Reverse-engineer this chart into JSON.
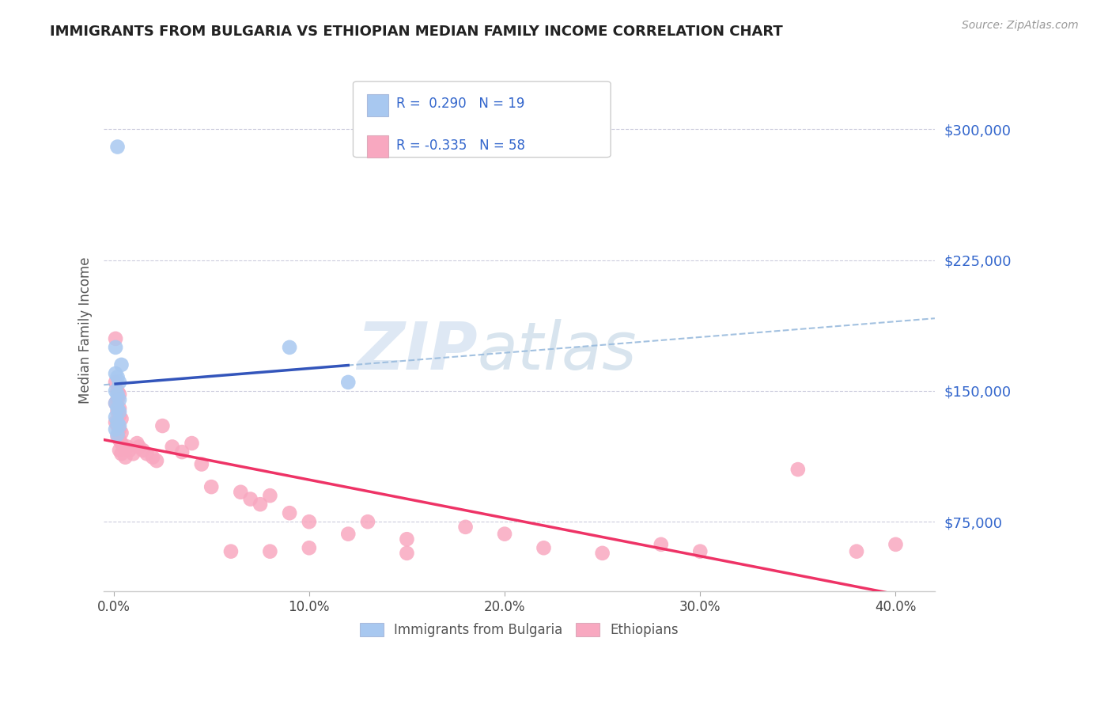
{
  "title": "IMMIGRANTS FROM BULGARIA VS ETHIOPIAN MEDIAN FAMILY INCOME CORRELATION CHART",
  "source_text": "Source: ZipAtlas.com",
  "ylabel": "Median Family Income",
  "xlabel_ticks": [
    "0.0%",
    "10.0%",
    "20.0%",
    "30.0%",
    "40.0%"
  ],
  "xlabel_tick_vals": [
    0.0,
    0.1,
    0.2,
    0.3,
    0.4
  ],
  "ytick_labels": [
    "$75,000",
    "$150,000",
    "$225,000",
    "$300,000"
  ],
  "ytick_vals": [
    75000,
    150000,
    225000,
    300000
  ],
  "ylim": [
    35000,
    335000
  ],
  "xlim": [
    -0.005,
    0.42
  ],
  "bg_color": "#ffffff",
  "grid_color": "#ccccdd",
  "bulgaria_color": "#a8c8f0",
  "ethiopia_color": "#f8a8c0",
  "bulgaria_line_color": "#3355bb",
  "ethiopia_line_color": "#ee3366",
  "bulgaria_dashed_color": "#99bbdd",
  "legend_text_color": "#3366cc",
  "axis_text_color": "#3366cc",
  "bottom_legend_text_color": "#555555",
  "bulgaria_points": [
    [
      0.002,
      290000
    ],
    [
      0.001,
      175000
    ],
    [
      0.004,
      165000
    ],
    [
      0.001,
      160000
    ],
    [
      0.002,
      158000
    ],
    [
      0.003,
      155000
    ],
    [
      0.001,
      150000
    ],
    [
      0.002,
      148000
    ],
    [
      0.003,
      145000
    ],
    [
      0.001,
      143000
    ],
    [
      0.002,
      140000
    ],
    [
      0.003,
      138000
    ],
    [
      0.001,
      135000
    ],
    [
      0.002,
      132000
    ],
    [
      0.003,
      130000
    ],
    [
      0.001,
      128000
    ],
    [
      0.002,
      125000
    ],
    [
      0.09,
      175000
    ],
    [
      0.12,
      155000
    ]
  ],
  "ethiopia_points": [
    [
      0.001,
      180000
    ],
    [
      0.001,
      155000
    ],
    [
      0.002,
      150000
    ],
    [
      0.003,
      148000
    ],
    [
      0.002,
      145000
    ],
    [
      0.001,
      143000
    ],
    [
      0.003,
      140000
    ],
    [
      0.002,
      138000
    ],
    [
      0.003,
      136000
    ],
    [
      0.004,
      134000
    ],
    [
      0.001,
      132000
    ],
    [
      0.002,
      130000
    ],
    [
      0.003,
      128000
    ],
    [
      0.004,
      126000
    ],
    [
      0.002,
      124000
    ],
    [
      0.003,
      122000
    ],
    [
      0.004,
      120000
    ],
    [
      0.005,
      118000
    ],
    [
      0.003,
      116000
    ],
    [
      0.004,
      114000
    ],
    [
      0.006,
      112000
    ],
    [
      0.007,
      118000
    ],
    [
      0.008,
      116000
    ],
    [
      0.01,
      114000
    ],
    [
      0.012,
      120000
    ],
    [
      0.013,
      118000
    ],
    [
      0.015,
      116000
    ],
    [
      0.017,
      114000
    ],
    [
      0.02,
      112000
    ],
    [
      0.022,
      110000
    ],
    [
      0.025,
      130000
    ],
    [
      0.03,
      118000
    ],
    [
      0.035,
      115000
    ],
    [
      0.04,
      120000
    ],
    [
      0.045,
      108000
    ],
    [
      0.05,
      95000
    ],
    [
      0.06,
      58000
    ],
    [
      0.065,
      92000
    ],
    [
      0.07,
      88000
    ],
    [
      0.075,
      85000
    ],
    [
      0.08,
      90000
    ],
    [
      0.09,
      80000
    ],
    [
      0.1,
      75000
    ],
    [
      0.12,
      68000
    ],
    [
      0.13,
      75000
    ],
    [
      0.15,
      65000
    ],
    [
      0.18,
      72000
    ],
    [
      0.2,
      68000
    ],
    [
      0.22,
      60000
    ],
    [
      0.25,
      57000
    ],
    [
      0.28,
      62000
    ],
    [
      0.3,
      58000
    ],
    [
      0.35,
      105000
    ],
    [
      0.38,
      58000
    ],
    [
      0.4,
      62000
    ],
    [
      0.15,
      57000
    ],
    [
      0.1,
      60000
    ],
    [
      0.08,
      58000
    ]
  ]
}
